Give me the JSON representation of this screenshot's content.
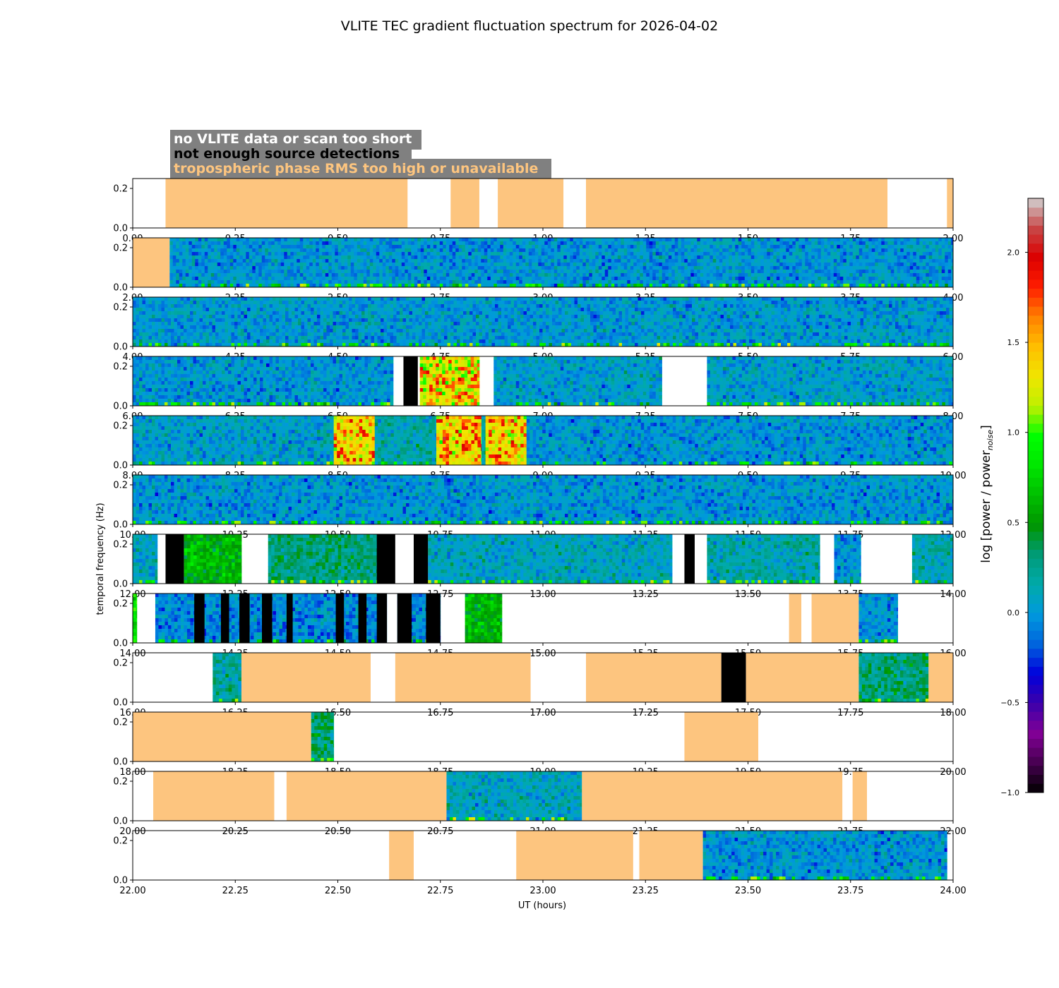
{
  "chart_data": {
    "type": "heatmap",
    "title": "VLITE TEC gradient fluctuation spectrum for 2026-04-02",
    "xlabel": "UT (hours)",
    "ylabel": "temporal frequency (Hz)",
    "colorbar": {
      "label_main": "log [power / power",
      "label_sub": "noise",
      "label_end": "]",
      "range": [
        -1.0,
        2.3
      ],
      "ticks": [
        "−1.0",
        "−0.5",
        "0.0",
        "0.5",
        "1.0",
        "1.5",
        "2.0"
      ],
      "tick_values": [
        -1.0,
        -0.5,
        0.0,
        0.5,
        1.0,
        1.5,
        2.0
      ],
      "colormap": "nipy_spectral"
    },
    "legend": {
      "placement": "top-left",
      "box_color": "#808080",
      "entries": [
        {
          "label": "no VLITE data or scan too short",
          "color": "#ffffff"
        },
        {
          "label": "not enough source detections",
          "color": "#000000"
        },
        {
          "label": "tropospheric phase RMS too high or unavailable",
          "color": "#fdc57f"
        }
      ]
    },
    "colors": {
      "trop": "#fdc57f",
      "nodet": "#000000",
      "nodata": "#ffffff"
    },
    "y_range": [
      0.0,
      0.25
    ],
    "y_ticks": [
      "0.0",
      "0.2"
    ],
    "y_tick_values": [
      0.0,
      0.2
    ],
    "panels": [
      {
        "xlim": [
          0,
          2
        ],
        "xticks": [
          "0.00",
          "0.25",
          "0.50",
          "0.75",
          "1.00",
          "1.25",
          "1.50",
          "1.75",
          "2.00"
        ],
        "segments": [
          {
            "start": 0.08,
            "end": 0.67,
            "kind": "trop"
          },
          {
            "start": 0.775,
            "end": 0.845,
            "kind": "trop"
          },
          {
            "start": 0.89,
            "end": 1.05,
            "kind": "trop"
          },
          {
            "start": 1.105,
            "end": 1.84,
            "kind": "trop"
          },
          {
            "start": 1.985,
            "end": 2.0,
            "kind": "trop"
          }
        ]
      },
      {
        "xlim": [
          2,
          4
        ],
        "xticks": [
          "2.00",
          "2.25",
          "2.50",
          "2.75",
          "3.00",
          "3.25",
          "3.50",
          "3.75",
          "4.00"
        ],
        "segments": [
          {
            "start": 2.0,
            "end": 2.09,
            "kind": "trop"
          },
          {
            "start": 2.09,
            "end": 4.0,
            "kind": "spec",
            "level": 0.0
          }
        ]
      },
      {
        "xlim": [
          4,
          6
        ],
        "xticks": [
          "4.00",
          "4.25",
          "4.50",
          "4.75",
          "5.00",
          "5.25",
          "5.50",
          "5.75",
          "6.00"
        ],
        "segments": [
          {
            "start": 4.0,
            "end": 6.0,
            "kind": "spec",
            "level": 0.02
          }
        ]
      },
      {
        "xlim": [
          6,
          8
        ],
        "xticks": [
          "6.00",
          "6.25",
          "6.50",
          "6.75",
          "7.00",
          "7.25",
          "7.50",
          "7.75",
          "8.00"
        ],
        "segments": [
          {
            "start": 6.0,
            "end": 6.635,
            "kind": "spec",
            "level": 0.0
          },
          {
            "start": 6.66,
            "end": 6.695,
            "kind": "nodet"
          },
          {
            "start": 6.7,
            "end": 6.845,
            "kind": "spec",
            "level": 1.2
          },
          {
            "start": 6.88,
            "end": 7.29,
            "kind": "spec",
            "level": 0.05
          },
          {
            "start": 7.4,
            "end": 8.0,
            "kind": "spec",
            "level": 0.05
          }
        ]
      },
      {
        "xlim": [
          8,
          10
        ],
        "xticks": [
          "8.00",
          "8.25",
          "8.50",
          "8.75",
          "9.00",
          "9.25",
          "9.50",
          "9.75",
          "10.00"
        ],
        "segments": [
          {
            "start": 8.0,
            "end": 8.49,
            "kind": "spec",
            "level": 0.05
          },
          {
            "start": 8.49,
            "end": 8.59,
            "kind": "spec",
            "level": 1.3
          },
          {
            "start": 8.59,
            "end": 8.74,
            "kind": "spec",
            "level": 0.15
          },
          {
            "start": 8.74,
            "end": 8.85,
            "kind": "spec",
            "level": 1.3
          },
          {
            "start": 8.85,
            "end": 8.86,
            "kind": "spec",
            "level": 0.2
          },
          {
            "start": 8.86,
            "end": 8.96,
            "kind": "spec",
            "level": 1.3
          },
          {
            "start": 8.96,
            "end": 10.0,
            "kind": "spec",
            "level": 0.0
          }
        ]
      },
      {
        "xlim": [
          10,
          12
        ],
        "xticks": [
          "10.00",
          "10.25",
          "10.50",
          "10.75",
          "11.00",
          "11.25",
          "11.50",
          "11.75",
          "12.00"
        ],
        "segments": [
          {
            "start": 10.0,
            "end": 12.0,
            "kind": "spec",
            "level": 0.0
          }
        ]
      },
      {
        "xlim": [
          12,
          14
        ],
        "xticks": [
          "12.00",
          "12.25",
          "12.50",
          "12.75",
          "13.00",
          "13.25",
          "13.50",
          "13.75",
          "14.00"
        ],
        "segments": [
          {
            "start": 12.0,
            "end": 12.06,
            "kind": "spec",
            "level": 0.1
          },
          {
            "start": 12.08,
            "end": 12.125,
            "kind": "nodet"
          },
          {
            "start": 12.125,
            "end": 12.265,
            "kind": "spec",
            "level": 0.6
          },
          {
            "start": 12.33,
            "end": 12.595,
            "kind": "spec",
            "level": 0.3
          },
          {
            "start": 12.595,
            "end": 12.64,
            "kind": "nodet"
          },
          {
            "start": 12.685,
            "end": 12.72,
            "kind": "nodet"
          },
          {
            "start": 12.72,
            "end": 13.315,
            "kind": "spec",
            "level": 0.1
          },
          {
            "start": 13.345,
            "end": 13.37,
            "kind": "nodet"
          },
          {
            "start": 13.4,
            "end": 13.675,
            "kind": "spec",
            "level": 0.15
          },
          {
            "start": 13.71,
            "end": 13.775,
            "kind": "spec",
            "level": 0.0
          },
          {
            "start": 13.9,
            "end": 14.0,
            "kind": "spec",
            "level": 0.15
          }
        ]
      },
      {
        "xlim": [
          14,
          16
        ],
        "xticks": [
          "14.00",
          "14.25",
          "14.50",
          "14.75",
          "15.00",
          "15.25",
          "15.50",
          "15.75",
          "16.00"
        ],
        "segments": [
          {
            "start": 14.0,
            "end": 14.01,
            "kind": "spec",
            "level": 0.8
          },
          {
            "start": 14.055,
            "end": 14.75,
            "kind": "spec",
            "level": -0.05
          },
          {
            "start": 14.15,
            "end": 14.175,
            "kind": "nodet"
          },
          {
            "start": 14.215,
            "end": 14.235,
            "kind": "nodet"
          },
          {
            "start": 14.26,
            "end": 14.285,
            "kind": "nodet"
          },
          {
            "start": 14.315,
            "end": 14.34,
            "kind": "nodet"
          },
          {
            "start": 14.375,
            "end": 14.39,
            "kind": "nodet"
          },
          {
            "start": 14.495,
            "end": 14.515,
            "kind": "nodet"
          },
          {
            "start": 14.55,
            "end": 14.57,
            "kind": "nodet"
          },
          {
            "start": 14.595,
            "end": 14.62,
            "kind": "nodet"
          },
          {
            "start": 14.62,
            "end": 14.645,
            "kind": "nodata"
          },
          {
            "start": 14.645,
            "end": 14.68,
            "kind": "nodet"
          },
          {
            "start": 14.715,
            "end": 14.75,
            "kind": "nodet"
          },
          {
            "start": 14.81,
            "end": 14.9,
            "kind": "spec",
            "level": 0.6
          },
          {
            "start": 15.6,
            "end": 15.63,
            "kind": "trop"
          },
          {
            "start": 15.655,
            "end": 15.77,
            "kind": "trop"
          },
          {
            "start": 15.77,
            "end": 15.865,
            "kind": "spec",
            "level": 0.0
          }
        ]
      },
      {
        "xlim": [
          16,
          18
        ],
        "xticks": [
          "16.00",
          "16.25",
          "16.50",
          "16.75",
          "17.00",
          "17.25",
          "17.50",
          "17.75",
          "18.00"
        ],
        "segments": [
          {
            "start": 16.195,
            "end": 16.265,
            "kind": "spec",
            "level": 0.2
          },
          {
            "start": 16.265,
            "end": 16.58,
            "kind": "trop"
          },
          {
            "start": 16.64,
            "end": 16.97,
            "kind": "trop"
          },
          {
            "start": 17.105,
            "end": 17.435,
            "kind": "trop"
          },
          {
            "start": 17.435,
            "end": 17.495,
            "kind": "nodet"
          },
          {
            "start": 17.495,
            "end": 17.77,
            "kind": "trop"
          },
          {
            "start": 17.77,
            "end": 17.94,
            "kind": "spec",
            "level": 0.3
          },
          {
            "start": 17.94,
            "end": 18.0,
            "kind": "trop"
          }
        ]
      },
      {
        "xlim": [
          18,
          20
        ],
        "xticks": [
          "18.00",
          "18.25",
          "18.50",
          "18.75",
          "19.00",
          "19.25",
          "19.50",
          "19.75",
          "20.00"
        ],
        "segments": [
          {
            "start": 18.0,
            "end": 18.435,
            "kind": "trop"
          },
          {
            "start": 18.435,
            "end": 18.49,
            "kind": "spec",
            "level": 0.3
          },
          {
            "start": 19.345,
            "end": 19.525,
            "kind": "trop"
          }
        ]
      },
      {
        "xlim": [
          20,
          22
        ],
        "xticks": [
          "20.00",
          "20.25",
          "20.50",
          "20.75",
          "21.00",
          "21.25",
          "21.50",
          "21.75",
          "22.00"
        ],
        "segments": [
          {
            "start": 20.05,
            "end": 20.345,
            "kind": "trop"
          },
          {
            "start": 20.375,
            "end": 20.765,
            "kind": "trop"
          },
          {
            "start": 20.765,
            "end": 21.095,
            "kind": "spec",
            "level": 0.1
          },
          {
            "start": 21.095,
            "end": 21.73,
            "kind": "trop"
          },
          {
            "start": 21.755,
            "end": 21.79,
            "kind": "trop"
          }
        ]
      },
      {
        "xlim": [
          22,
          24
        ],
        "xticks": [
          "22.00",
          "22.25",
          "22.50",
          "22.75",
          "23.00",
          "23.25",
          "23.50",
          "23.75",
          "24.00"
        ],
        "segments": [
          {
            "start": 22.625,
            "end": 22.685,
            "kind": "trop"
          },
          {
            "start": 22.935,
            "end": 23.22,
            "kind": "trop"
          },
          {
            "start": 23.235,
            "end": 23.39,
            "kind": "trop"
          },
          {
            "start": 23.39,
            "end": 23.985,
            "kind": "spec",
            "level": 0.0
          }
        ]
      }
    ]
  }
}
